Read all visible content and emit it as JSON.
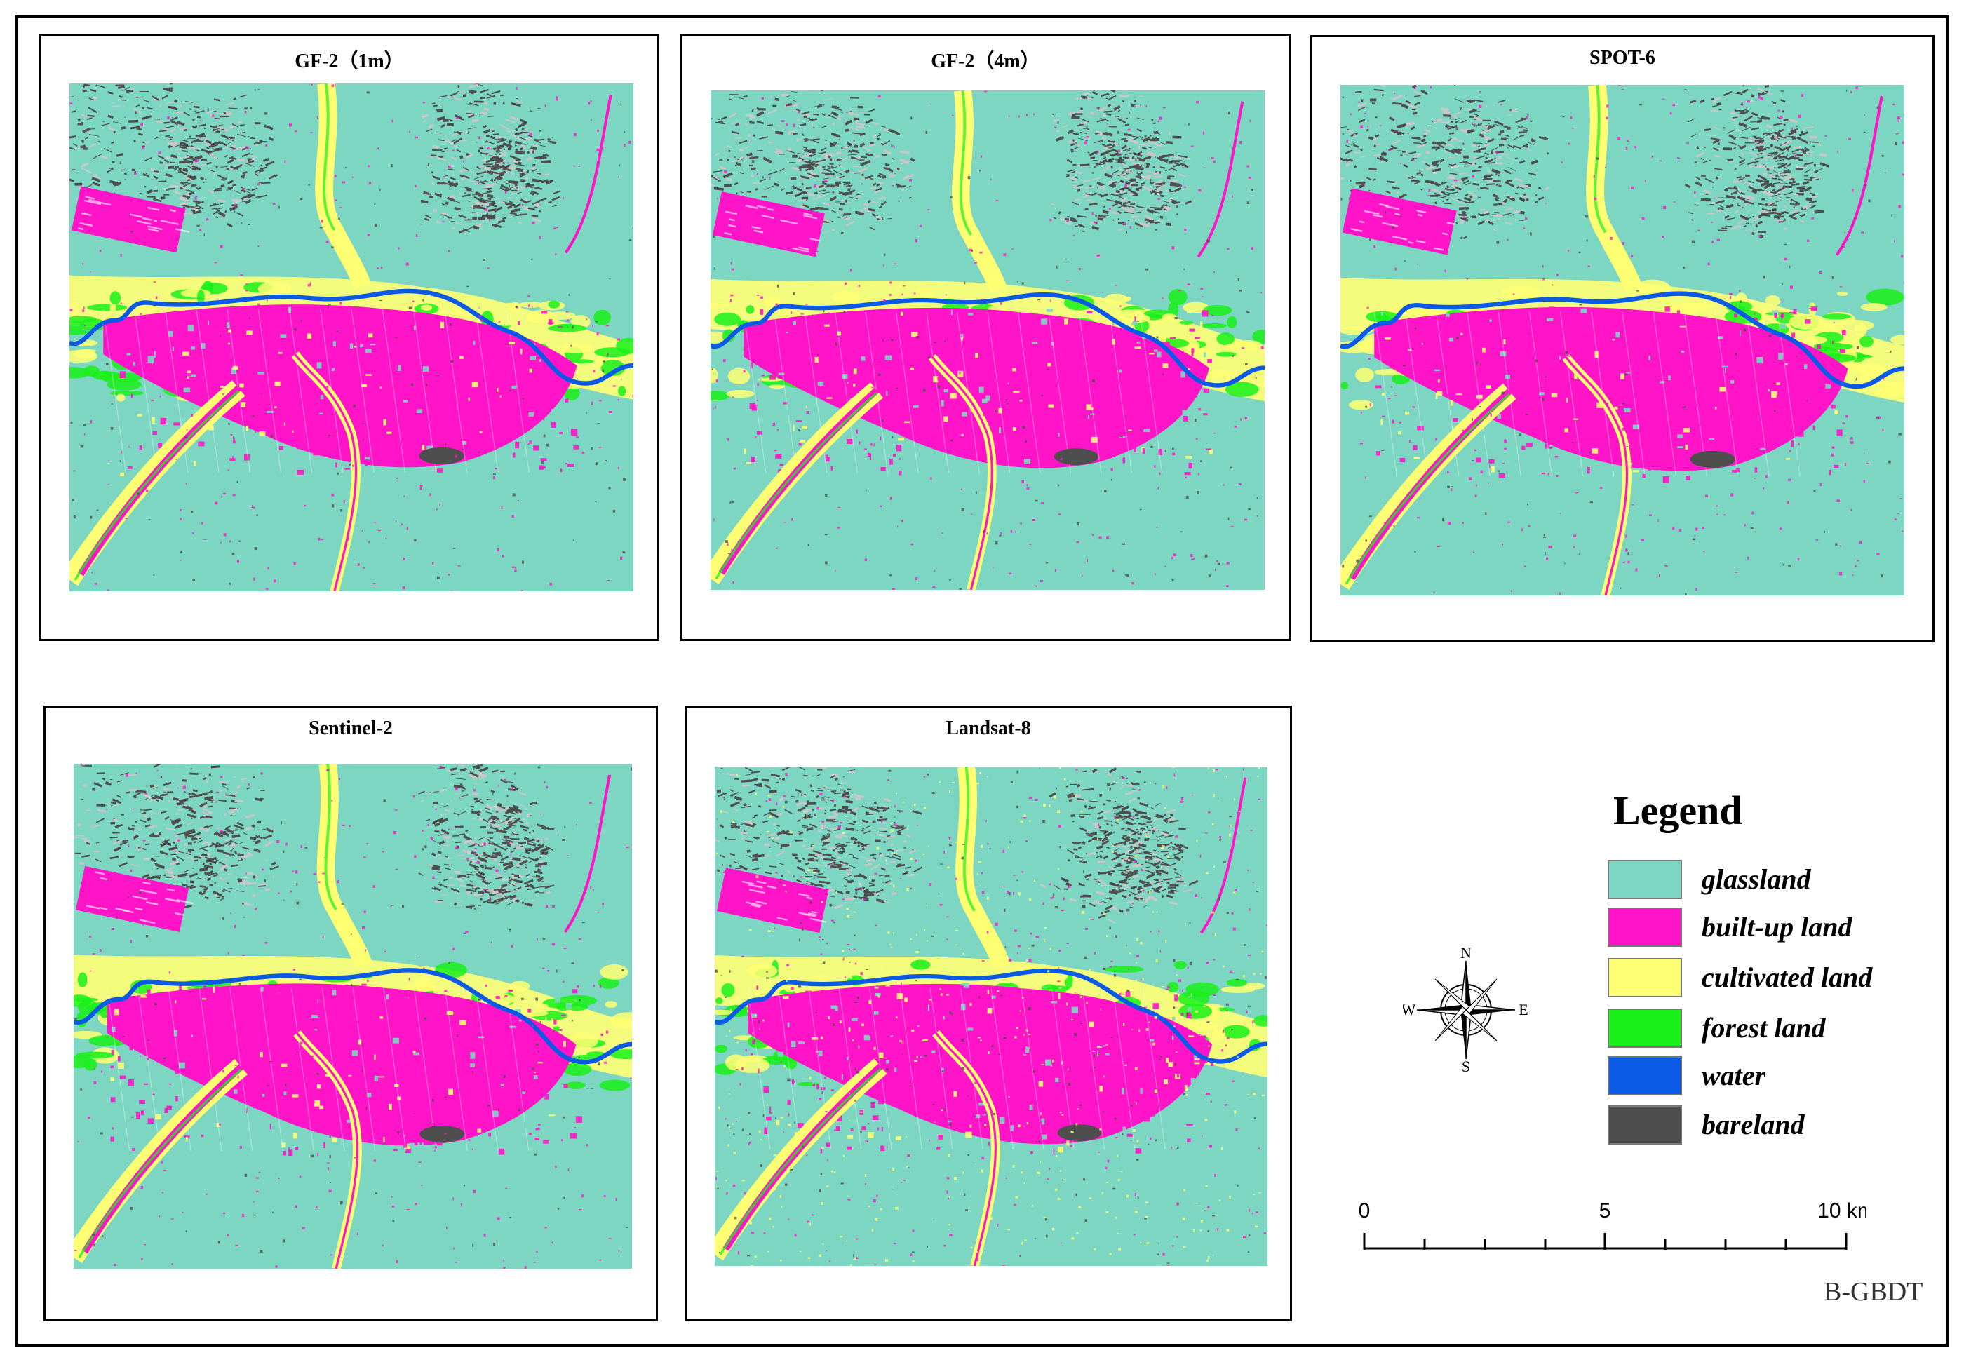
{
  "panels": [
    {
      "title": "GF-2（1m）"
    },
    {
      "title": "GF-2（4m）"
    },
    {
      "title": "SPOT-6"
    },
    {
      "title": "Sentinel-2"
    },
    {
      "title": "Landsat-8"
    }
  ],
  "legend": {
    "title": "Legend",
    "items": [
      {
        "label": "glassland",
        "color": "#7dd6c2"
      },
      {
        "label": "built-up land",
        "color": "#ff14c8"
      },
      {
        "label": "cultivated land",
        "color": "#ffff73"
      },
      {
        "label": "forest land",
        "color": "#19f019"
      },
      {
        "label": "water",
        "color": "#0a5ae6"
      },
      {
        "label": "bareland",
        "color": "#4e4e4e"
      }
    ]
  },
  "compass": {
    "n": "N",
    "s": "S",
    "e": "E",
    "w": "W"
  },
  "scale": {
    "label_0": "0",
    "label_5": "5",
    "label_10": "10 km"
  },
  "method_label": "B-GBDT"
}
